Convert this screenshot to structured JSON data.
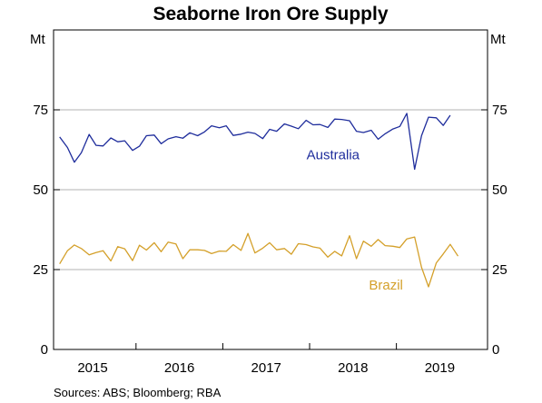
{
  "chart_data": {
    "type": "line",
    "title": "Seaborne Iron Ore Supply",
    "y_unit_left": "Mt",
    "y_unit_right": "Mt",
    "ylim": [
      0,
      100
    ],
    "y_ticks": [
      0,
      25,
      50,
      75
    ],
    "xlim": [
      2014.55,
      2019.55
    ],
    "x_ticks": [
      {
        "label": "2015",
        "value": 2015.0
      },
      {
        "label": "2016",
        "value": 2016.0
      },
      {
        "label": "2017",
        "value": 2017.0
      },
      {
        "label": "2018",
        "value": 2018.0
      },
      {
        "label": "2019",
        "value": 2019.0
      }
    ],
    "grid": true,
    "source": "Sources:   ABS; Bloomberg; RBA",
    "series": [
      {
        "name": "Australia",
        "color": "#1f2d9c",
        "x": [
          2014.62,
          2014.71,
          2014.79,
          2014.87,
          2014.96,
          2015.04,
          2015.12,
          2015.21,
          2015.29,
          2015.37,
          2015.46,
          2015.54,
          2015.62,
          2015.71,
          2015.79,
          2015.87,
          2015.96,
          2016.04,
          2016.12,
          2016.21,
          2016.29,
          2016.37,
          2016.46,
          2016.54,
          2016.62,
          2016.71,
          2016.79,
          2016.87,
          2016.96,
          2017.04,
          2017.12,
          2017.21,
          2017.29,
          2017.37,
          2017.46,
          2017.54,
          2017.62,
          2017.71,
          2017.79,
          2017.87,
          2017.96,
          2018.04,
          2018.12,
          2018.21,
          2018.29,
          2018.37,
          2018.46,
          2018.54,
          2018.62,
          2018.71,
          2018.79,
          2018.87,
          2018.96,
          2019.04,
          2019.12,
          2019.21
        ],
        "values": [
          66.5,
          63.2,
          58.6,
          61.6,
          67.3,
          63.9,
          63.7,
          66.2,
          65.0,
          65.3,
          62.3,
          63.6,
          66.9,
          67.1,
          64.4,
          65.9,
          66.6,
          66.1,
          67.8,
          66.9,
          68.1,
          70.0,
          69.4,
          70.0,
          67.0,
          67.4,
          68.0,
          67.6,
          66.0,
          68.9,
          68.3,
          70.6,
          69.9,
          69.1,
          71.7,
          70.3,
          70.4,
          69.5,
          72.1,
          72.0,
          71.6,
          68.3,
          67.9,
          68.6,
          65.8,
          67.5,
          69.0,
          69.8,
          73.9,
          56.4,
          66.9,
          72.7,
          72.5,
          70.1,
          73.3,
          null
        ],
        "label_at": [
          2017.77,
          61.0
        ]
      },
      {
        "name": "Brazil",
        "color": "#d4a02a",
        "x": [
          2014.62,
          2014.71,
          2014.79,
          2014.87,
          2014.96,
          2015.04,
          2015.12,
          2015.21,
          2015.29,
          2015.37,
          2015.46,
          2015.54,
          2015.62,
          2015.71,
          2015.79,
          2015.87,
          2015.96,
          2016.04,
          2016.12,
          2016.21,
          2016.29,
          2016.37,
          2016.46,
          2016.54,
          2016.62,
          2016.71,
          2016.79,
          2016.87,
          2016.96,
          2017.04,
          2017.12,
          2017.21,
          2017.29,
          2017.37,
          2017.46,
          2017.54,
          2017.62,
          2017.71,
          2017.79,
          2017.87,
          2017.96,
          2018.04,
          2018.12,
          2018.21,
          2018.29,
          2018.37,
          2018.46,
          2018.54,
          2018.62,
          2018.71,
          2018.79,
          2018.87,
          2018.96,
          2019.04,
          2019.12,
          2019.21
        ],
        "values": [
          26.8,
          30.9,
          32.7,
          31.6,
          29.6,
          30.3,
          30.9,
          27.7,
          32.2,
          31.5,
          27.8,
          32.6,
          31.1,
          33.4,
          30.6,
          33.6,
          33.0,
          28.4,
          31.2,
          31.2,
          31.0,
          30.0,
          30.8,
          30.7,
          32.8,
          31.0,
          36.3,
          30.2,
          31.7,
          33.4,
          31.2,
          31.6,
          29.8,
          33.1,
          32.8,
          32.1,
          31.7,
          28.9,
          30.7,
          29.3,
          35.6,
          28.4,
          33.9,
          32.3,
          34.4,
          32.5,
          32.3,
          31.9,
          34.6,
          35.2,
          25.7,
          19.6,
          27.1,
          29.9,
          32.9,
          29.2
        ],
        "label_at": [
          2018.38,
          20.2
        ]
      }
    ]
  }
}
